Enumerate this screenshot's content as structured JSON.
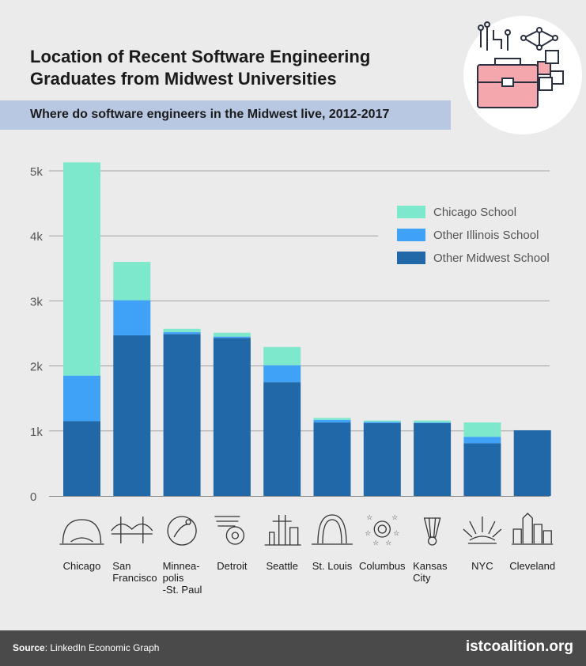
{
  "title": "Location of Recent Software Engineering Graduates from Midwest Universities",
  "subtitle": "Where do software engineers in the Midwest live, 2012-2017",
  "footer": {
    "source_label": "Source",
    "source_text": ": LinkedIn Economic Graph",
    "brand": "istcoalition.org"
  },
  "colors": {
    "background": "#ebebeb",
    "chicago_school": "#7de8cb",
    "other_illinois": "#3fa2f7",
    "other_midwest": "#2068a8",
    "subtitle_band": "#b9c8e2",
    "footer": "#4a4a4a",
    "briefcase": "#f4a7ad"
  },
  "chart_data": {
    "type": "bar",
    "stacked": true,
    "categories": [
      "Chicago",
      "San Francisco",
      "Minnea-polis-St. Paul",
      "Detroit",
      "Seattle",
      "St. Louis",
      "Columbus",
      "Kansas City",
      "NYC",
      "Cleveland"
    ],
    "category_lines": [
      [
        "Chicago"
      ],
      [
        "San",
        "Francisco"
      ],
      [
        "Minnea-",
        "polis",
        "-St. Paul"
      ],
      [
        "Detroit"
      ],
      [
        "Seattle"
      ],
      [
        "St. Louis"
      ],
      [
        "Columbus"
      ],
      [
        "Kansas",
        "City"
      ],
      [
        "NYC"
      ],
      [
        "Cleveland"
      ]
    ],
    "category_icons": [
      "bean-icon",
      "golden-gate-bridge-icon",
      "loon-icon",
      "winged-wheel-icon",
      "space-needle-icon",
      "gateway-arch-icon",
      "stars-icon",
      "shuttlecock-icon",
      "statue-of-liberty-crown-icon",
      "cleveland-skyline-icon"
    ],
    "series": [
      {
        "name": "Other Midwest School",
        "values": [
          1150,
          2470,
          2490,
          2430,
          1750,
          1130,
          1120,
          1120,
          810,
          1010
        ]
      },
      {
        "name": "Other Illinois School",
        "values": [
          700,
          540,
          30,
          20,
          260,
          40,
          20,
          10,
          100,
          0
        ]
      },
      {
        "name": "Chicago School",
        "values": [
          3280,
          590,
          50,
          60,
          280,
          30,
          20,
          30,
          220,
          0
        ]
      }
    ],
    "legend_order": [
      "Chicago School",
      "Other Illinois School",
      "Other Midwest School"
    ],
    "legend_position": "top-right",
    "y_ticks": [
      0,
      1000,
      2000,
      3000,
      4000,
      5000
    ],
    "y_tick_labels": [
      "0",
      "1k",
      "2k",
      "3k",
      "4k",
      "5k"
    ],
    "ylim": [
      0,
      5000
    ],
    "grid": true
  }
}
